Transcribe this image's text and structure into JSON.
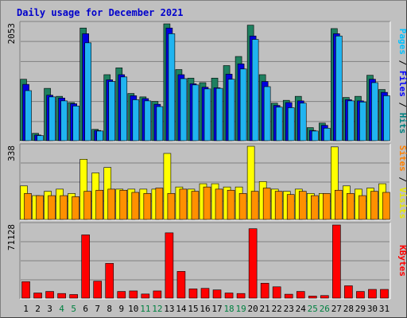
{
  "chart_data": {
    "type": "bar",
    "title": "Daily usage for December 2021",
    "categories": [
      "1",
      "2",
      "3",
      "4",
      "5",
      "6",
      "7",
      "8",
      "9",
      "10",
      "11",
      "12",
      "13",
      "14",
      "15",
      "16",
      "17",
      "18",
      "19",
      "20",
      "21",
      "22",
      "23",
      "24",
      "25",
      "26",
      "27",
      "28",
      "29",
      "30",
      "31"
    ],
    "weekend_days": [
      "4",
      "5",
      "11",
      "12",
      "18",
      "19",
      "25",
      "26"
    ],
    "panels": [
      {
        "id": "hits-files-pages",
        "ymax": 2053,
        "ytick_label": "2053",
        "legend": [
          {
            "text": "Pages",
            "color": "#00c0ff"
          },
          {
            "text": " / ",
            "color": "#000000"
          },
          {
            "text": "Files",
            "color": "#0000ff"
          },
          {
            "text": " / ",
            "color": "#000000"
          },
          {
            "text": "Hits",
            "color": "#008080"
          }
        ],
        "series": [
          {
            "name": "Hits",
            "color": "#1e8060",
            "values": [
              1080,
              130,
              920,
              780,
              670,
              1980,
              200,
              1160,
              1280,
              830,
              770,
              690,
              2053,
              1250,
              1100,
              1020,
              1100,
              1320,
              1480,
              2030,
              1160,
              660,
              710,
              780,
              230,
              310,
              1970,
              760,
              780,
              1150,
              900
            ]
          },
          {
            "name": "Files",
            "color": "#0000e0",
            "values": [
              990,
              100,
              800,
              750,
              650,
              1880,
              180,
              1070,
              1160,
              790,
              740,
              640,
              1980,
              1160,
              1000,
              940,
              930,
              1170,
              1350,
              1840,
              1040,
              620,
              670,
              700,
              180,
              270,
              1880,
              720,
              700,
              1080,
              850
            ]
          },
          {
            "name": "Pages",
            "color": "#20b4f0",
            "values": [
              880,
              90,
              770,
              700,
              610,
              1720,
              170,
              1040,
              1120,
              720,
              700,
              600,
              1880,
              1090,
              980,
              910,
              920,
              1080,
              1260,
              1780,
              950,
              590,
              580,
              660,
              170,
              220,
              1840,
              700,
              680,
              1020,
              790
            ]
          }
        ]
      },
      {
        "id": "visits-sites",
        "ymax": 338,
        "ytick_label": "338",
        "legend": [
          {
            "text": "Sites",
            "color": "#ff8000"
          },
          {
            "text": " / ",
            "color": "#000000"
          },
          {
            "text": "Visits",
            "color": "#e8e800"
          }
        ],
        "series": [
          {
            "name": "Visits",
            "color": "#ffff00",
            "values": [
              155,
              110,
              130,
              140,
              120,
              278,
              215,
              240,
              140,
              140,
              140,
              140,
              305,
              150,
              140,
              165,
              165,
              150,
              150,
              338,
              175,
              140,
              130,
              140,
              120,
              120,
              335,
              155,
              140,
              145,
              165
            ]
          },
          {
            "name": "Sites",
            "color": "#ff9000",
            "values": [
              120,
              110,
              110,
              110,
              105,
              130,
              135,
              140,
              135,
              125,
              120,
              145,
              120,
              140,
              130,
              150,
              140,
              135,
              120,
              130,
              145,
              130,
              115,
              130,
              110,
              120,
              135,
              120,
              110,
              130,
              125
            ]
          }
        ]
      },
      {
        "id": "kbytes",
        "ymax": 71128,
        "ytick_label": "71128",
        "legend": [
          {
            "text": "KBytes",
            "color": "#ff0000"
          }
        ],
        "series": [
          {
            "name": "KBytes",
            "color": "#ff0000",
            "values": [
              16000,
              5000,
              6500,
              4500,
              3500,
              61500,
              16500,
              33800,
              6500,
              7000,
              4000,
              7000,
              63500,
              26000,
              9000,
              9500,
              8000,
              5000,
              4500,
              67500,
              14500,
              11000,
              3800,
              6500,
              2000,
              2500,
              71128,
              12000,
              6500,
              8500,
              8500
            ]
          }
        ]
      }
    ]
  }
}
